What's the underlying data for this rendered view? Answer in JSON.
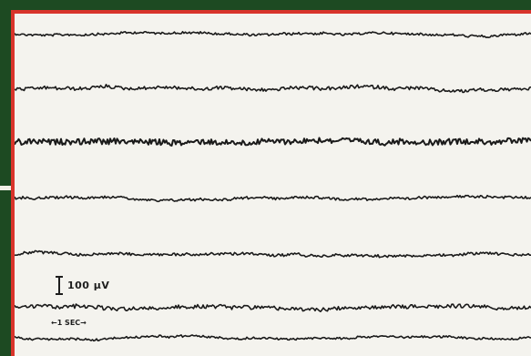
{
  "recording": {
    "channels": [
      {
        "id": 1,
        "amplitude": "low",
        "level": 0.25
      },
      {
        "id": 2,
        "amplitude": "medium",
        "level": 0.45
      },
      {
        "id": 3,
        "amplitude": "high",
        "level": 0.9
      },
      {
        "id": 4,
        "amplitude": "low",
        "level": 0.3
      },
      {
        "id": 5,
        "amplitude": "low",
        "level": 0.3
      },
      {
        "id": 6,
        "amplitude": "medium",
        "level": 0.55
      },
      {
        "id": 7,
        "amplitude": "low",
        "level": 0.2
      }
    ],
    "amplitude_scale_label": "100 µV",
    "time_scale_label": "←1 SEC→",
    "colors": {
      "trace": "#1a1a1a",
      "paper": "#f4f3ee",
      "border": "#d8342b",
      "background": "#1d4a22"
    }
  }
}
